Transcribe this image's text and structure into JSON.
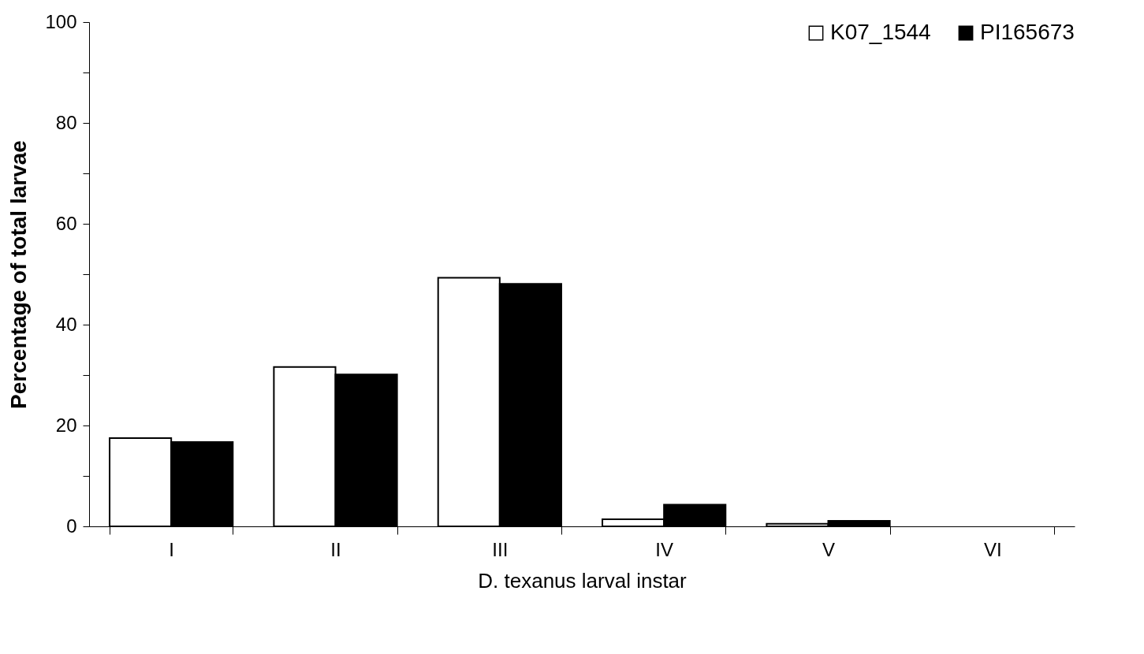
{
  "chart_data": {
    "type": "bar",
    "xlabel": "D. texanus larval instar",
    "ylabel": "Percentage of total larvae",
    "categories": [
      "I",
      "II",
      "III",
      "IV",
      "V",
      "VI"
    ],
    "series": [
      {
        "name": "K07_1544",
        "color": "#ffffff",
        "values": [
          17.5,
          31.6,
          49.3,
          1.4,
          0.5,
          null
        ]
      },
      {
        "name": "PI165673",
        "color": "#000000",
        "values": [
          16.7,
          30.1,
          48.1,
          4.3,
          1.1,
          null
        ]
      }
    ],
    "ylim": [
      0,
      100
    ],
    "yticks": [
      0,
      {
        "value": 10,
        "label": null
      },
      20,
      {
        "value": 30,
        "label": null
      },
      40,
      {
        "value": 50,
        "label": null
      },
      60,
      {
        "value": 70,
        "label": null
      },
      80,
      {
        "value": 90,
        "label": null
      },
      100
    ],
    "grid": false,
    "legend": "top right"
  }
}
